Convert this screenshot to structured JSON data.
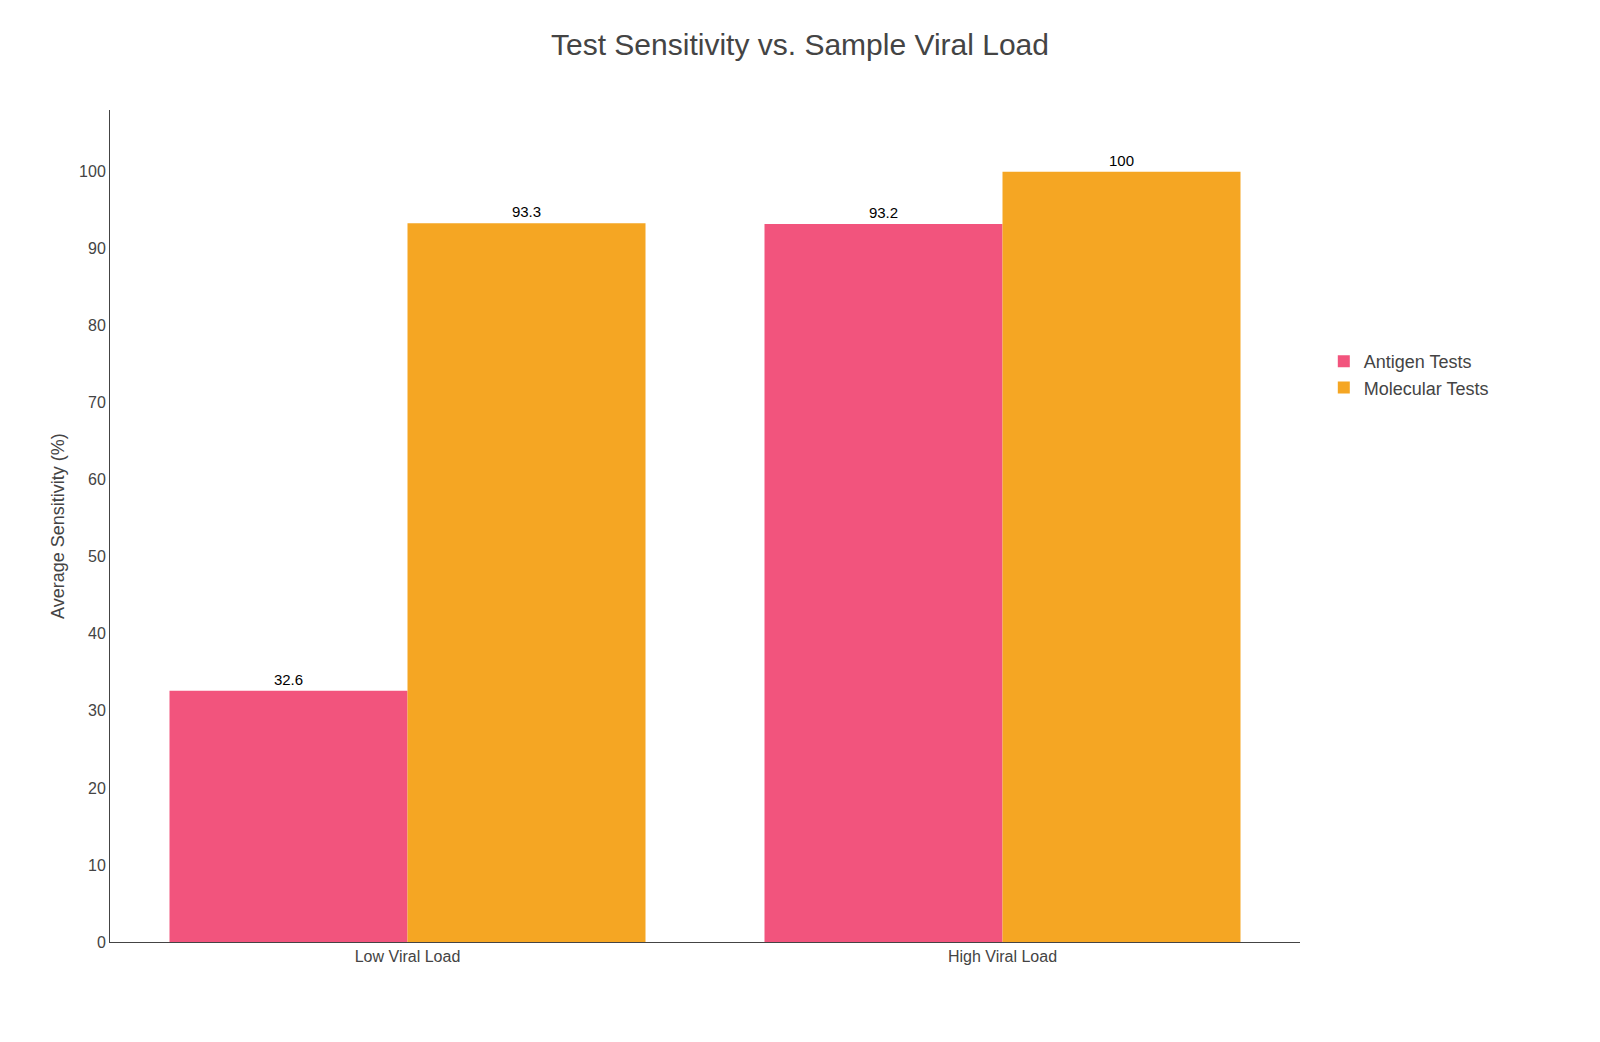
{
  "chart_data": {
    "type": "bar",
    "title": "Test Sensitivity vs. Sample Viral Load",
    "ylabel": "Average Sensitivity (%)",
    "categories": [
      "Low Viral Load",
      "High Viral Load"
    ],
    "series": [
      {
        "name": "Antigen Tests",
        "color": "#F2547D",
        "values": [
          32.6,
          93.2
        ]
      },
      {
        "name": "Molecular Tests",
        "color": "#F5A623",
        "values": [
          93.3,
          100
        ]
      }
    ],
    "ylim": [
      0,
      108
    ],
    "yticks": [
      0,
      10,
      20,
      30,
      40,
      50,
      60,
      70,
      80,
      90,
      100
    ],
    "grid": false,
    "legend": "right",
    "data_labels": true
  }
}
